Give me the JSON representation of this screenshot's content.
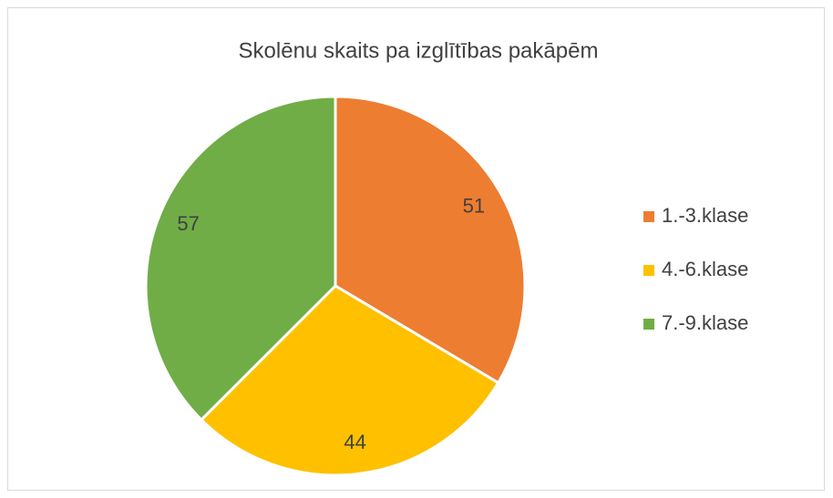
{
  "chart_data": {
    "type": "pie",
    "title": "Skolēnu skaits pa izglītības pakāpēm",
    "categories": [
      "1.-3.klase",
      "4.-6.klase",
      "7.-9.klase"
    ],
    "values": [
      51,
      44,
      57
    ],
    "colors": [
      "#ed7d31",
      "#ffc000",
      "#70ad47"
    ],
    "legend": "right"
  }
}
